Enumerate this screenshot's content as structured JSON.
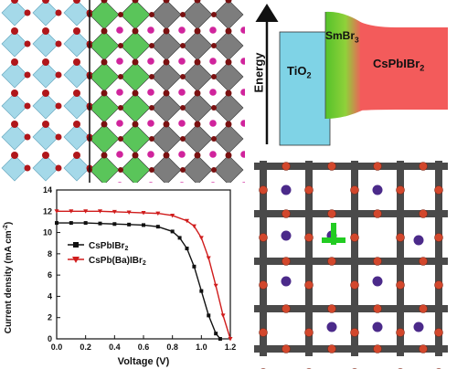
{
  "energy_diagram": {
    "axis_label": "Energy",
    "layers": [
      {
        "name": "TiO",
        "sub": "2",
        "color": "#7fd3e6"
      },
      {
        "name": "SmBr",
        "sub": "3",
        "color": "#66cc33"
      },
      {
        "name": "CsPbIBr",
        "sub": "2",
        "color": "#f35b5b"
      }
    ]
  },
  "legend": [
    {
      "label": "CsPbIBr",
      "sub": "2",
      "color": "#111111",
      "marker": "square"
    },
    {
      "label": "CsPb(Ba)IBr",
      "sub": "2",
      "color": "#d01c1c",
      "marker": "triangle"
    }
  ],
  "chart_data": {
    "type": "line",
    "xlabel": "Voltage (V)",
    "ylabel": "Current density (mA cm",
    "ylabel_sup": "-2",
    "xlim": [
      0.0,
      1.2
    ],
    "ylim": [
      0,
      14
    ],
    "xticks": [
      "0.0",
      "0.2",
      "0.4",
      "0.6",
      "0.8",
      "1.0",
      "1.2"
    ],
    "yticks": [
      "0",
      "2",
      "4",
      "6",
      "8",
      "10",
      "12",
      "14"
    ],
    "series": [
      {
        "name": "CsPbIBr2",
        "color": "#111111",
        "x": [
          0.0,
          0.1,
          0.2,
          0.3,
          0.4,
          0.5,
          0.6,
          0.7,
          0.8,
          0.85,
          0.9,
          0.95,
          1.0,
          1.05,
          1.1,
          1.13
        ],
        "y": [
          10.9,
          10.9,
          10.9,
          10.85,
          10.8,
          10.75,
          10.7,
          10.55,
          10.1,
          9.5,
          8.5,
          6.8,
          4.5,
          2.2,
          0.5,
          0.0
        ]
      },
      {
        "name": "CsPb(Ba)IBr2",
        "color": "#d01c1c",
        "x": [
          0.0,
          0.1,
          0.2,
          0.3,
          0.4,
          0.5,
          0.6,
          0.7,
          0.8,
          0.9,
          0.95,
          1.0,
          1.05,
          1.1,
          1.15,
          1.2
        ],
        "y": [
          12.0,
          12.0,
          12.0,
          12.0,
          11.95,
          11.9,
          11.85,
          11.8,
          11.6,
          11.1,
          10.6,
          9.5,
          7.6,
          5.0,
          2.2,
          0.0
        ]
      }
    ]
  }
}
